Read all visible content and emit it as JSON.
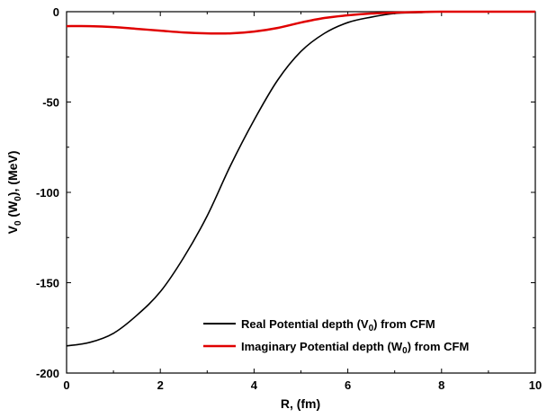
{
  "chart_data": {
    "type": "line",
    "title": "",
    "xlabel": "R, (fm)",
    "ylabel": "V0 (W0), (MeV)",
    "ylabel_parts": {
      "a": "V",
      "a_sub": "0",
      "b": " (W",
      "b_sub": "0",
      "c": "), (MeV)"
    },
    "xlim": [
      0,
      10
    ],
    "ylim": [
      -200,
      0
    ],
    "xticks": [
      0,
      2,
      4,
      6,
      8,
      10
    ],
    "yticks": [
      0,
      -50,
      -100,
      -150,
      -200
    ],
    "grid": false,
    "legend_position": "bottom-right",
    "series": [
      {
        "name": "Real Potential depth (V0) from CFM",
        "legend_parts": {
          "pre": "Real Potential depth (V",
          "sub": "0",
          "post": ") from CFM"
        },
        "color": "#000000",
        "x": [
          0,
          0.5,
          1,
          1.5,
          2,
          2.5,
          3,
          3.5,
          4,
          4.5,
          5,
          5.5,
          6,
          6.5,
          7,
          7.5,
          8,
          8.5,
          9,
          9.5,
          10
        ],
        "y": [
          -185,
          -183,
          -178,
          -168,
          -155,
          -136,
          -113,
          -85,
          -60,
          -38,
          -22,
          -12,
          -6,
          -3,
          -1,
          -0.5,
          0,
          0,
          0,
          0,
          0
        ]
      },
      {
        "name": "Imaginary Potential depth (W0) from CFM",
        "legend_parts": {
          "pre": "Imaginary Potential depth (W",
          "sub": "0",
          "post": ") from CFM"
        },
        "color": "#e00000",
        "x": [
          0,
          0.5,
          1,
          1.5,
          2,
          2.5,
          3,
          3.5,
          4,
          4.5,
          5,
          5.5,
          6,
          6.5,
          7,
          7.5,
          8,
          8.5,
          9,
          9.5,
          10
        ],
        "y": [
          -8,
          -8,
          -8.5,
          -9.5,
          -10.5,
          -11.5,
          -12,
          -12,
          -11,
          -9,
          -6,
          -3.5,
          -2,
          -1,
          -0.5,
          -0.2,
          0,
          0,
          0,
          0,
          0
        ]
      }
    ]
  }
}
